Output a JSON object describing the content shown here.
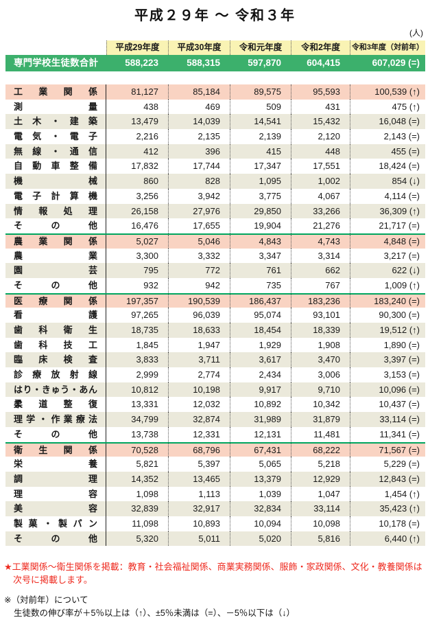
{
  "title": "平成２９年 ～ 令和３年",
  "unit_label": "(人)",
  "columns": [
    "平成29年度",
    "平成30年度",
    "令和元年度",
    "令和2年度",
    "令和3年度（対前年）"
  ],
  "total_row": {
    "label": "専門学校生徒数合計",
    "values": [
      "588,223",
      "588,315",
      "597,870",
      "604,415",
      "607,029 (=)"
    ]
  },
  "sections": [
    {
      "label": "工業関係",
      "values": [
        "81,127",
        "85,184",
        "89,575",
        "95,593",
        "100,539 (↑)"
      ],
      "rows": [
        {
          "label": "測量",
          "values": [
            "438",
            "469",
            "509",
            "431",
            "475 (↑)"
          ]
        },
        {
          "label": "土木・建築",
          "values": [
            "13,479",
            "14,039",
            "14,541",
            "15,432",
            "16,048 (=)"
          ]
        },
        {
          "label": "電気・電子",
          "values": [
            "2,216",
            "2,135",
            "2,139",
            "2,120",
            "2,143 (=)"
          ]
        },
        {
          "label": "無線・通信",
          "values": [
            "412",
            "396",
            "415",
            "448",
            "455 (=)"
          ]
        },
        {
          "label": "自動車整備",
          "values": [
            "17,832",
            "17,744",
            "17,347",
            "17,551",
            "18,424 (=)"
          ]
        },
        {
          "label": "機械",
          "values": [
            "860",
            "828",
            "1,095",
            "1,002",
            "854 (↓)"
          ]
        },
        {
          "label": "電子計算機",
          "values": [
            "3,256",
            "3,942",
            "3,775",
            "4,067",
            "4,114 (=)"
          ]
        },
        {
          "label": "情報処理",
          "values": [
            "26,158",
            "27,976",
            "29,850",
            "33,266",
            "36,309 (↑)"
          ]
        },
        {
          "label": "その他",
          "values": [
            "16,476",
            "17,655",
            "19,904",
            "21,276",
            "21,717 (=)"
          ]
        }
      ]
    },
    {
      "label": "農業関係",
      "values": [
        "5,027",
        "5,046",
        "4,843",
        "4,743",
        "4,848 (=)"
      ],
      "rows": [
        {
          "label": "農業",
          "values": [
            "3,300",
            "3,332",
            "3,347",
            "3,314",
            "3,217 (=)"
          ]
        },
        {
          "label": "園芸",
          "values": [
            "795",
            "772",
            "761",
            "662",
            "622 (↓)"
          ]
        },
        {
          "label": "その他",
          "values": [
            "932",
            "942",
            "735",
            "767",
            "1,009 (↑)"
          ]
        }
      ]
    },
    {
      "label": "医療関係",
      "values": [
        "197,357",
        "190,539",
        "186,437",
        "183,236",
        "183,240 (=)"
      ],
      "rows": [
        {
          "label": "看護",
          "values": [
            "97,265",
            "96,039",
            "95,074",
            "93,101",
            "90,300 (=)"
          ]
        },
        {
          "label": "歯科衛生",
          "values": [
            "18,735",
            "18,633",
            "18,454",
            "18,339",
            "19,512 (↑)"
          ]
        },
        {
          "label": "歯科技工",
          "values": [
            "1,845",
            "1,947",
            "1,929",
            "1,908",
            "1,890 (=)"
          ]
        },
        {
          "label": "臨床検査",
          "values": [
            "3,833",
            "3,711",
            "3,617",
            "3,470",
            "3,397 (=)"
          ]
        },
        {
          "label": "診療放射線",
          "values": [
            "2,999",
            "2,774",
            "2,434",
            "3,006",
            "3,153 (=)"
          ]
        },
        {
          "label": "はり・きゅう・あんま",
          "values": [
            "10,812",
            "10,198",
            "9,917",
            "9,710",
            "10,096 (=)"
          ]
        },
        {
          "label": "柔道整復",
          "values": [
            "13,331",
            "12,032",
            "10,892",
            "10,342",
            "10,437 (=)"
          ]
        },
        {
          "label": "理学・作業療法",
          "values": [
            "34,799",
            "32,874",
            "31,989",
            "31,879",
            "33,114 (=)"
          ]
        },
        {
          "label": "その他",
          "values": [
            "13,738",
            "12,331",
            "12,131",
            "11,481",
            "11,341 (=)"
          ]
        }
      ]
    },
    {
      "label": "衛生関係",
      "values": [
        "70,528",
        "68,796",
        "67,431",
        "68,222",
        "71,567 (=)"
      ],
      "rows": [
        {
          "label": "栄養",
          "values": [
            "5,821",
            "5,397",
            "5,065",
            "5,218",
            "5,229 (=)"
          ]
        },
        {
          "label": "調理",
          "values": [
            "14,352",
            "13,465",
            "13,379",
            "12,929",
            "12,843 (=)"
          ]
        },
        {
          "label": "理容",
          "values": [
            "1,098",
            "1,113",
            "1,039",
            "1,047",
            "1,454 (↑)"
          ]
        },
        {
          "label": "美容",
          "values": [
            "32,839",
            "32,917",
            "32,834",
            "33,114",
            "35,423 (↑)"
          ]
        },
        {
          "label": "製菓・製パン",
          "values": [
            "11,098",
            "10,893",
            "10,094",
            "10,098",
            "10,178 (=)"
          ]
        },
        {
          "label": "その他",
          "values": [
            "5,320",
            "5,011",
            "5,020",
            "5,816",
            "6,440 (↑)"
          ]
        }
      ]
    }
  ],
  "footnotes": {
    "red_line1": "★工業関係～衛生関係を掲載：教育・社会福祉関係、商業実務関係、服飾・家政関係、文化・教養関係は",
    "red_line2": "次号に掲載します。",
    "note_line1": "※（対前年）について",
    "note_line2": "生徒数の伸び率が＋5％以上は（↑）、±5％未満は（=）、－5％以下は（↓）"
  },
  "colors": {
    "header_bg": "#f9f3b4",
    "total_bg": "#3cb06c",
    "section_bg": "#f9d3c2",
    "alt_bg": "#ebe9db",
    "green_line": "#00a55e",
    "note_red": "#ee2a1f"
  }
}
